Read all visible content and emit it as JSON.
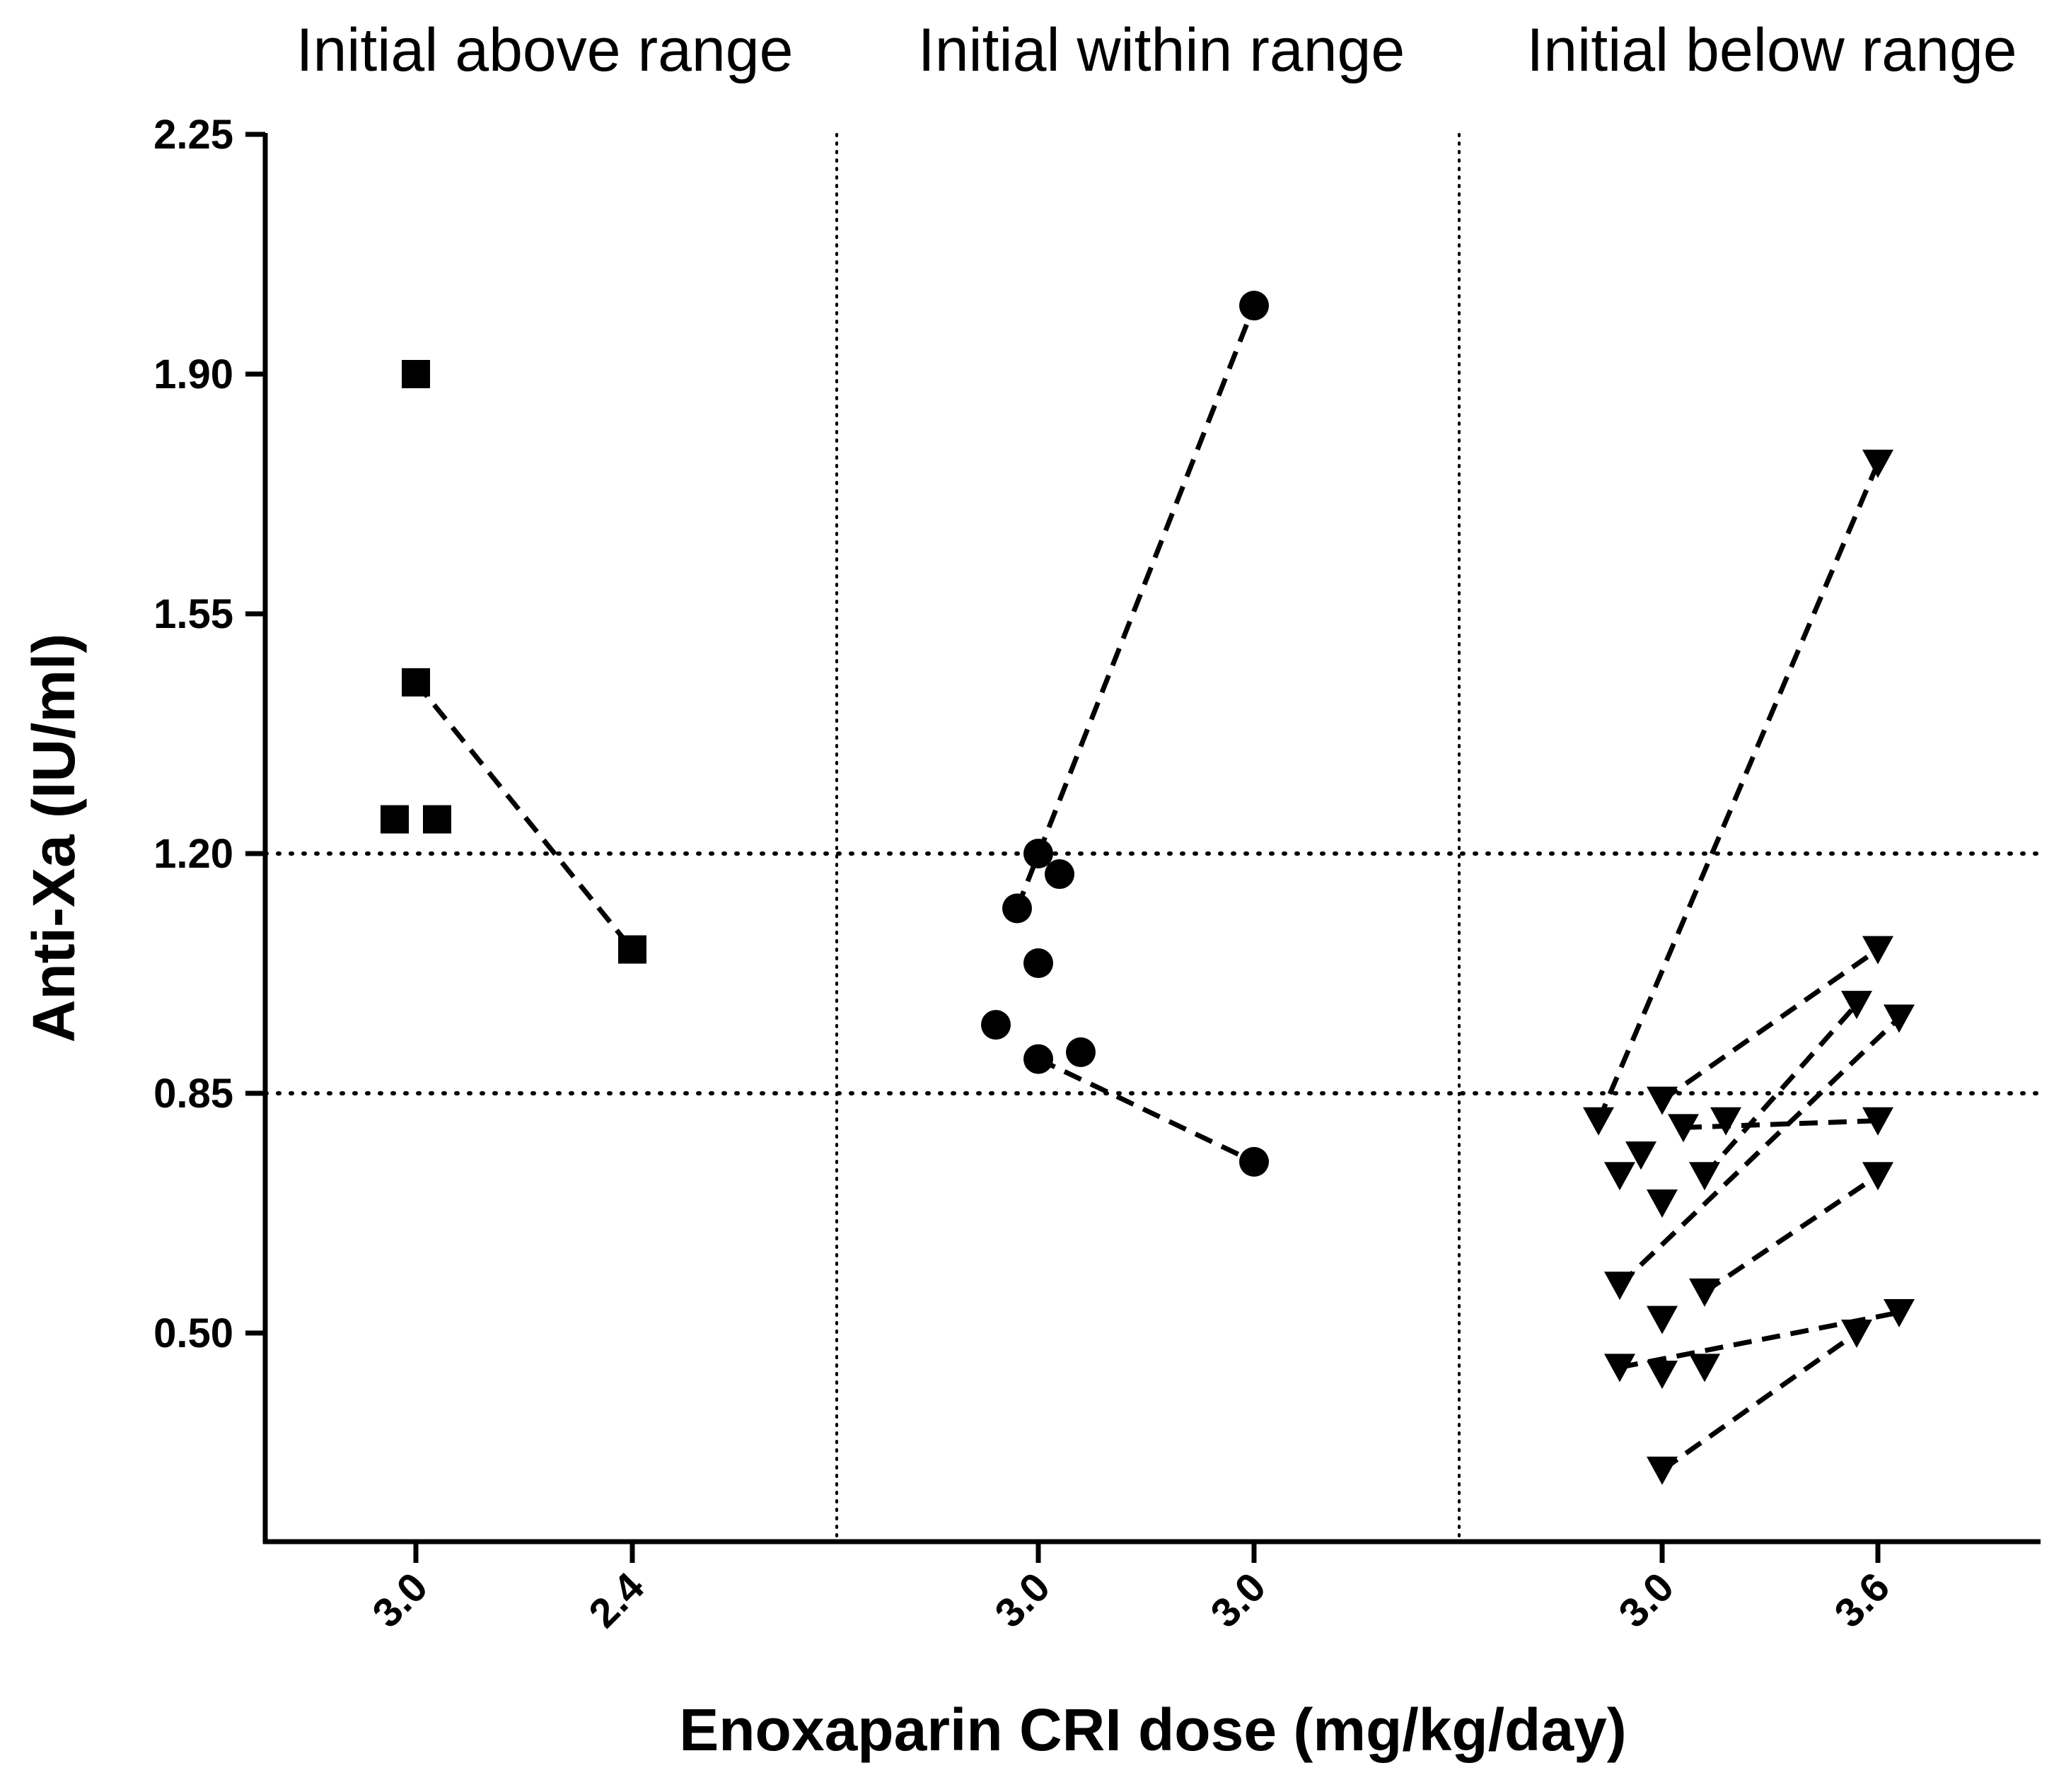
{
  "chart_data": {
    "type": "scatter",
    "ylabel": "Anti-Xa (IU/ml)",
    "xlabel": "Enoxaparin CRI dose (mg/kg/day)",
    "ylim": [
      0.2,
      2.25
    ],
    "yticks": [
      "0.50",
      "0.85",
      "1.20",
      "1.55",
      "1.90",
      "2.25"
    ],
    "reference_lines": [
      0.85,
      1.2
    ],
    "colors": {
      "ink": "#000000",
      "background": "#ffffff"
    },
    "groups": [
      {
        "title": "Initial above range",
        "marker": "square",
        "dose_labels": [
          "3.0",
          "2.4"
        ],
        "points": [
          {
            "col": 0,
            "offset": 0,
            "y": 1.9
          },
          {
            "col": 0,
            "offset": 0,
            "y": 1.45
          },
          {
            "col": 0,
            "offset": -1,
            "y": 1.25
          },
          {
            "col": 0,
            "offset": 1,
            "y": 1.25
          },
          {
            "col": 1,
            "offset": 0,
            "y": 1.06
          }
        ],
        "pairs": [
          {
            "from": {
              "col": 0,
              "offset": 0,
              "y": 1.45
            },
            "to": {
              "col": 1,
              "offset": 0,
              "y": 1.06
            }
          }
        ]
      },
      {
        "title": "Initial within range",
        "marker": "circle",
        "dose_labels": [
          "3.0",
          "3.0"
        ],
        "points": [
          {
            "col": 0,
            "offset": 0,
            "y": 1.2
          },
          {
            "col": 0,
            "offset": 1,
            "y": 1.17
          },
          {
            "col": 0,
            "offset": -1,
            "y": 1.12
          },
          {
            "col": 0,
            "offset": 0,
            "y": 1.04
          },
          {
            "col": 0,
            "offset": -2,
            "y": 0.95
          },
          {
            "col": 0,
            "offset": 0,
            "y": 0.9
          },
          {
            "col": 0,
            "offset": 2,
            "y": 0.91
          },
          {
            "col": 1,
            "offset": 0,
            "y": 2.0
          },
          {
            "col": 1,
            "offset": 0,
            "y": 0.75
          }
        ],
        "pairs": [
          {
            "from": {
              "col": 0,
              "offset": -1,
              "y": 1.12
            },
            "to": {
              "col": 1,
              "offset": 0,
              "y": 2.0
            }
          },
          {
            "from": {
              "col": 0,
              "offset": 0,
              "y": 0.9
            },
            "to": {
              "col": 1,
              "offset": 0,
              "y": 0.75
            }
          }
        ]
      },
      {
        "title": "Initial below range",
        "marker": "triangle-down",
        "dose_labels": [
          "3.0",
          "3.6"
        ],
        "points": [
          {
            "col": 0,
            "offset": -3,
            "y": 0.81
          },
          {
            "col": 0,
            "offset": 0,
            "y": 0.84
          },
          {
            "col": 0,
            "offset": 1,
            "y": 0.8
          },
          {
            "col": 0,
            "offset": 3,
            "y": 0.81
          },
          {
            "col": 0,
            "offset": -1,
            "y": 0.76
          },
          {
            "col": 0,
            "offset": -2,
            "y": 0.73
          },
          {
            "col": 0,
            "offset": 2,
            "y": 0.73
          },
          {
            "col": 0,
            "offset": 0,
            "y": 0.69
          },
          {
            "col": 0,
            "offset": -2,
            "y": 0.57
          },
          {
            "col": 0,
            "offset": 2,
            "y": 0.56
          },
          {
            "col": 0,
            "offset": 0,
            "y": 0.52
          },
          {
            "col": 0,
            "offset": -2,
            "y": 0.45
          },
          {
            "col": 0,
            "offset": 0,
            "y": 0.44
          },
          {
            "col": 0,
            "offset": 2,
            "y": 0.45
          },
          {
            "col": 0,
            "offset": 0,
            "y": 0.3
          },
          {
            "col": 1,
            "offset": 0,
            "y": 1.77
          },
          {
            "col": 1,
            "offset": 0,
            "y": 1.06
          },
          {
            "col": 1,
            "offset": -1,
            "y": 0.98
          },
          {
            "col": 1,
            "offset": 1,
            "y": 0.96
          },
          {
            "col": 1,
            "offset": 0,
            "y": 0.81
          },
          {
            "col": 1,
            "offset": 0,
            "y": 0.73
          },
          {
            "col": 1,
            "offset": 1,
            "y": 0.53
          },
          {
            "col": 1,
            "offset": -1,
            "y": 0.5
          }
        ],
        "pairs": [
          {
            "from": {
              "col": 0,
              "offset": -3,
              "y": 0.81
            },
            "to": {
              "col": 1,
              "offset": 0,
              "y": 1.77
            }
          },
          {
            "from": {
              "col": 0,
              "offset": 0,
              "y": 0.84
            },
            "to": {
              "col": 1,
              "offset": 0,
              "y": 1.06
            }
          },
          {
            "from": {
              "col": 0,
              "offset": 2,
              "y": 0.73
            },
            "to": {
              "col": 1,
              "offset": -1,
              "y": 0.98
            }
          },
          {
            "from": {
              "col": 0,
              "offset": -2,
              "y": 0.57
            },
            "to": {
              "col": 1,
              "offset": 1,
              "y": 0.96
            }
          },
          {
            "from": {
              "col": 0,
              "offset": 1,
              "y": 0.8
            },
            "to": {
              "col": 1,
              "offset": 0,
              "y": 0.81
            }
          },
          {
            "from": {
              "col": 0,
              "offset": 2,
              "y": 0.56
            },
            "to": {
              "col": 1,
              "offset": 0,
              "y": 0.73
            }
          },
          {
            "from": {
              "col": 0,
              "offset": -2,
              "y": 0.45
            },
            "to": {
              "col": 1,
              "offset": 1,
              "y": 0.53
            }
          },
          {
            "from": {
              "col": 0,
              "offset": 0,
              "y": 0.3
            },
            "to": {
              "col": 1,
              "offset": -1,
              "y": 0.5
            }
          }
        ]
      }
    ]
  }
}
